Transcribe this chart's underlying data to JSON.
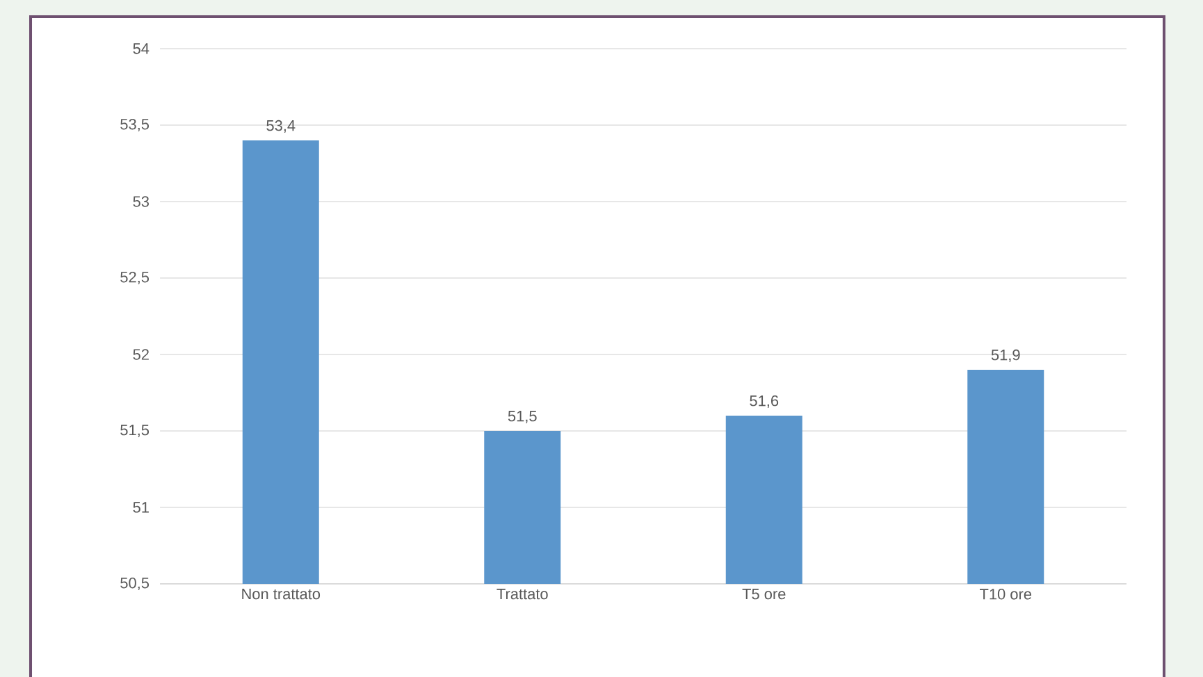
{
  "chart_data": {
    "type": "bar",
    "categories": [
      "Non trattato",
      "Trattato",
      "T5 ore",
      "T10 ore"
    ],
    "values": [
      53.4,
      51.5,
      51.6,
      51.9
    ],
    "color": "#5b96cc",
    "value_labels": [
      "53,4",
      "51,5",
      "51,6",
      "51,9"
    ],
    "ylim": [
      50.5,
      54
    ],
    "yticks": [
      {
        "value": 50.5,
        "label": "50,5"
      },
      {
        "value": 51,
        "label": "51"
      },
      {
        "value": 51.5,
        "label": "51,5"
      },
      {
        "value": 52,
        "label": "52"
      },
      {
        "value": 52.5,
        "label": "52,5"
      },
      {
        "value": 53,
        "label": "53"
      },
      {
        "value": 53.5,
        "label": "53,5"
      },
      {
        "value": 54,
        "label": "54"
      }
    ],
    "grid": "y"
  }
}
